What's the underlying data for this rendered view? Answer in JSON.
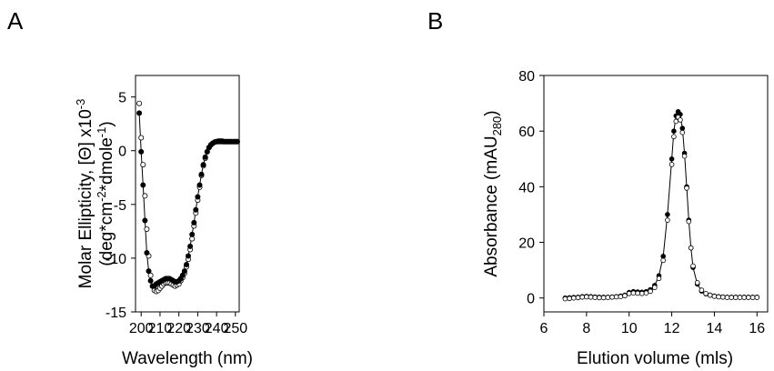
{
  "panels": {
    "a_letter": "A",
    "b_letter": "B"
  },
  "chart_data": [
    {
      "panel": "A",
      "type": "scatter",
      "xlabel": "Wavelength (nm)",
      "ylabel_line1": "Molar Ellipticity, [Θ] x10",
      "ylabel_line1_sup": "-3",
      "ylabel_line2": "(deg*cm",
      "ylabel_line2_sup1": "-2",
      "ylabel_line2_mid": "*dmole",
      "ylabel_line2_sup2": "-1",
      "ylabel_line2_end": ")",
      "xlim": [
        197,
        252
      ],
      "ylim": [
        -15,
        7
      ],
      "xticks": [
        200,
        210,
        220,
        230,
        240,
        250
      ],
      "yticks": [
        -15,
        -10,
        -5,
        0,
        5
      ],
      "grid": false,
      "series": [
        {
          "marker": "filled-circle",
          "line": true,
          "x": [
            199,
            200,
            201,
            202,
            203,
            204,
            205,
            206,
            207,
            208,
            209,
            210,
            211,
            212,
            213,
            214,
            215,
            216,
            217,
            218,
            219,
            220,
            221,
            222,
            223,
            224,
            225,
            226,
            227,
            228,
            229,
            230,
            231,
            232,
            233,
            234,
            235,
            236,
            237,
            238,
            239,
            240,
            241,
            242,
            243,
            244,
            245,
            246,
            247,
            248,
            249,
            250,
            251
          ],
          "values": [
            3.5,
            -0.1,
            -3.2,
            -6.5,
            -9.5,
            -11.2,
            -12.1,
            -12.6,
            -12.6,
            -12.4,
            -12.3,
            -12.2,
            -12.1,
            -12.0,
            -11.9,
            -11.9,
            -11.9,
            -12.0,
            -12.1,
            -12.2,
            -12.2,
            -12.1,
            -11.9,
            -11.6,
            -11.2,
            -10.6,
            -9.8,
            -8.9,
            -7.8,
            -6.7,
            -5.5,
            -4.3,
            -3.2,
            -2.2,
            -1.3,
            -0.6,
            -0.1,
            0.3,
            0.55,
            0.7,
            0.8,
            0.85,
            0.85,
            0.85,
            0.85,
            0.85,
            0.85,
            0.85,
            0.85,
            0.85,
            0.85,
            0.85,
            0.85
          ]
        },
        {
          "marker": "open-circle",
          "line": false,
          "x": [
            199,
            200,
            201,
            202,
            203,
            204,
            205,
            206,
            207,
            208,
            209,
            210,
            211,
            212,
            213,
            214,
            215,
            216,
            217,
            218,
            219,
            220,
            221,
            222,
            223,
            224,
            225,
            226,
            227,
            228,
            229,
            230,
            231,
            232,
            233,
            234,
            235,
            236,
            237,
            238,
            239,
            240,
            241,
            242,
            243,
            244,
            245,
            246,
            247,
            248,
            249,
            250,
            251
          ],
          "values": [
            4.4,
            1.2,
            -1.3,
            -4.2,
            -7.3,
            -9.8,
            -11.6,
            -12.6,
            -13.0,
            -13.1,
            -13.0,
            -12.8,
            -12.6,
            -12.4,
            -12.3,
            -12.3,
            -12.3,
            -12.4,
            -12.5,
            -12.6,
            -12.5,
            -12.4,
            -12.1,
            -11.8,
            -11.4,
            -10.8,
            -10.1,
            -9.2,
            -8.2,
            -7.0,
            -5.8,
            -4.6,
            -3.4,
            -2.3,
            -1.4,
            -0.7,
            -0.1,
            0.3,
            0.55,
            0.7,
            0.8,
            0.85,
            0.9,
            0.9,
            0.9,
            0.85,
            0.85,
            0.85,
            0.85,
            0.85,
            0.85,
            0.85,
            0.85
          ]
        }
      ]
    },
    {
      "panel": "B",
      "type": "scatter",
      "xlabel": "Elution volume (mls)",
      "ylabel": "Absorbance (mAU",
      "ylabel_sub": "280",
      "ylabel_end": ")",
      "xlim": [
        6,
        16.5
      ],
      "ylim": [
        -5,
        80
      ],
      "xticks": [
        6,
        8,
        10,
        12,
        14,
        16
      ],
      "yticks": [
        0,
        20,
        40,
        60,
        80
      ],
      "grid": false,
      "series": [
        {
          "marker": "filled-circle",
          "line": true,
          "x": [
            7.0,
            7.2,
            7.4,
            7.6,
            7.8,
            8.0,
            8.2,
            8.4,
            8.6,
            8.8,
            9.0,
            9.2,
            9.4,
            9.6,
            9.8,
            10.0,
            10.2,
            10.4,
            10.6,
            10.8,
            11.0,
            11.2,
            11.4,
            11.6,
            11.8,
            12.0,
            12.1,
            12.2,
            12.3,
            12.4,
            12.5,
            12.6,
            12.7,
            12.8,
            12.9,
            13.0,
            13.2,
            13.4,
            13.6,
            13.8,
            14.0,
            14.2,
            14.4,
            14.6,
            14.8,
            15.0,
            15.2,
            15.4,
            15.6,
            15.8,
            16.0
          ],
          "values": [
            0.0,
            0.1,
            0.2,
            0.3,
            0.5,
            0.6,
            0.5,
            0.4,
            0.3,
            0.3,
            0.3,
            0.4,
            0.5,
            0.7,
            1.0,
            2.0,
            2.3,
            2.2,
            2.1,
            2.3,
            3.0,
            4.5,
            8.0,
            15.0,
            30.0,
            50.0,
            60.0,
            65.5,
            67.0,
            66.0,
            61.0,
            52.0,
            40.0,
            28.0,
            18.0,
            11.0,
            5.0,
            2.5,
            1.5,
            1.0,
            0.7,
            0.5,
            0.4,
            0.3,
            0.3,
            0.3,
            0.3,
            0.3,
            0.3,
            0.3,
            0.3
          ]
        },
        {
          "marker": "open-circle",
          "line": false,
          "x": [
            7.0,
            7.2,
            7.4,
            7.6,
            7.8,
            8.0,
            8.2,
            8.4,
            8.6,
            8.8,
            9.0,
            9.2,
            9.4,
            9.6,
            9.8,
            10.0,
            10.2,
            10.4,
            10.6,
            10.8,
            11.0,
            11.2,
            11.4,
            11.6,
            11.8,
            12.0,
            12.1,
            12.2,
            12.3,
            12.4,
            12.5,
            12.6,
            12.7,
            12.8,
            12.9,
            13.0,
            13.2,
            13.4,
            13.6,
            13.8,
            14.0,
            14.2,
            14.4,
            14.6,
            14.8,
            15.0,
            15.2,
            15.4,
            15.6,
            15.8,
            16.0
          ],
          "values": [
            -0.3,
            -0.2,
            0.0,
            0.1,
            0.3,
            0.4,
            0.3,
            0.2,
            0.1,
            0.1,
            0.2,
            0.3,
            0.4,
            0.5,
            0.8,
            1.6,
            1.8,
            1.7,
            1.6,
            1.8,
            2.4,
            3.8,
            7.0,
            13.5,
            28.0,
            48.0,
            58.0,
            63.5,
            65.0,
            64.0,
            59.5,
            51.0,
            39.5,
            27.5,
            18.0,
            11.5,
            5.5,
            2.8,
            1.6,
            1.0,
            0.6,
            0.4,
            0.3,
            0.2,
            0.2,
            0.2,
            0.2,
            0.2,
            0.2,
            0.2,
            0.2
          ]
        }
      ]
    }
  ]
}
